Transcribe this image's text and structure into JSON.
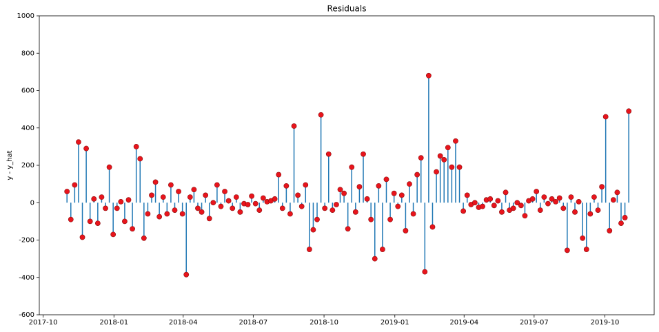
{
  "chart_data": {
    "type": "stem",
    "title": "Residuals",
    "y_label": "y - y_hat",
    "x": [
      "2017-11-01",
      "2017-11-06",
      "2017-11-11",
      "2017-11-16",
      "2017-11-21",
      "2017-11-26",
      "2017-12-01",
      "2017-12-06",
      "2017-12-11",
      "2017-12-16",
      "2017-12-21",
      "2017-12-26",
      "2017-12-31",
      "2018-01-05",
      "2018-01-10",
      "2018-01-15",
      "2018-01-20",
      "2018-01-25",
      "2018-01-30",
      "2018-02-04",
      "2018-02-09",
      "2018-02-14",
      "2018-02-19",
      "2018-02-24",
      "2018-03-01",
      "2018-03-06",
      "2018-03-11",
      "2018-03-16",
      "2018-03-21",
      "2018-03-26",
      "2018-03-31",
      "2018-04-05",
      "2018-04-10",
      "2018-04-15",
      "2018-04-20",
      "2018-04-25",
      "2018-04-30",
      "2018-05-05",
      "2018-05-10",
      "2018-05-15",
      "2018-05-20",
      "2018-05-25",
      "2018-05-30",
      "2018-06-04",
      "2018-06-09",
      "2018-06-14",
      "2018-06-19",
      "2018-06-24",
      "2018-06-29",
      "2018-07-04",
      "2018-07-09",
      "2018-07-14",
      "2018-07-19",
      "2018-07-24",
      "2018-07-29",
      "2018-08-03",
      "2018-08-08",
      "2018-08-13",
      "2018-08-18",
      "2018-08-23",
      "2018-08-28",
      "2018-09-02",
      "2018-09-07",
      "2018-09-12",
      "2018-09-17",
      "2018-09-22",
      "2018-09-27",
      "2018-10-02",
      "2018-10-07",
      "2018-10-12",
      "2018-10-17",
      "2018-10-22",
      "2018-10-27",
      "2018-11-01",
      "2018-11-06",
      "2018-11-11",
      "2018-11-16",
      "2018-11-21",
      "2018-11-26",
      "2018-12-01",
      "2018-12-06",
      "2018-12-11",
      "2018-12-16",
      "2018-12-21",
      "2018-12-26",
      "2018-12-31",
      "2019-01-05",
      "2019-01-10",
      "2019-01-15",
      "2019-01-20",
      "2019-01-25",
      "2019-01-30",
      "2019-02-04",
      "2019-02-09",
      "2019-02-14",
      "2019-02-19",
      "2019-02-24",
      "2019-03-01",
      "2019-03-06",
      "2019-03-11",
      "2019-03-16",
      "2019-03-21",
      "2019-03-26",
      "2019-03-31",
      "2019-04-05",
      "2019-04-10",
      "2019-04-15",
      "2019-04-20",
      "2019-04-25",
      "2019-04-30",
      "2019-05-05",
      "2019-05-10",
      "2019-05-15",
      "2019-05-20",
      "2019-05-25",
      "2019-05-30",
      "2019-06-04",
      "2019-06-09",
      "2019-06-14",
      "2019-06-19",
      "2019-06-24",
      "2019-06-29",
      "2019-07-04",
      "2019-07-09",
      "2019-07-14",
      "2019-07-19",
      "2019-07-24",
      "2019-07-29",
      "2019-08-03",
      "2019-08-08",
      "2019-08-13",
      "2019-08-18",
      "2019-08-23",
      "2019-08-28",
      "2019-09-02",
      "2019-09-07",
      "2019-09-12",
      "2019-09-17",
      "2019-09-22",
      "2019-09-27",
      "2019-10-02",
      "2019-10-07",
      "2019-10-12",
      "2019-10-17",
      "2019-10-22",
      "2019-10-27",
      "2019-11-01"
    ],
    "values": [
      60,
      -90,
      95,
      325,
      -185,
      290,
      -100,
      20,
      -110,
      30,
      -30,
      190,
      -170,
      -30,
      5,
      -100,
      15,
      -140,
      300,
      235,
      -190,
      -60,
      40,
      110,
      -75,
      30,
      -60,
      95,
      -40,
      60,
      -60,
      -385,
      30,
      70,
      -30,
      -50,
      40,
      -85,
      0,
      95,
      -20,
      60,
      10,
      -30,
      30,
      -50,
      -5,
      -10,
      35,
      -5,
      -40,
      25,
      5,
      10,
      20,
      150,
      -30,
      90,
      -60,
      410,
      40,
      -20,
      95,
      -250,
      -145,
      -90,
      470,
      -30,
      260,
      -40,
      -10,
      70,
      50,
      -140,
      190,
      -50,
      85,
      260,
      20,
      -90,
      -300,
      90,
      -250,
      125,
      -90,
      50,
      -20,
      40,
      -150,
      100,
      -60,
      150,
      240,
      -370,
      680,
      -130,
      165,
      250,
      230,
      295,
      190,
      330,
      190,
      -45,
      40,
      -10,
      0,
      -25,
      -20,
      15,
      20,
      -15,
      10,
      -50,
      55,
      -40,
      -30,
      0,
      -15,
      -70,
      10,
      20,
      60,
      -40,
      30,
      -5,
      20,
      5,
      25,
      -30,
      -255,
      30,
      -50,
      5,
      -190,
      -250,
      -60,
      30,
      -40,
      85,
      460,
      -150,
      15,
      55,
      -110,
      -80,
      490
    ],
    "stem_color": "#1f77b4",
    "marker_color": "#e8141c",
    "xlim": [
      "2017-09-26",
      "2019-12-04"
    ],
    "xticks": [
      "2017-10",
      "2018-01",
      "2018-04",
      "2018-07",
      "2018-10",
      "2019-01",
      "2019-04",
      "2019-07",
      "2019-10"
    ],
    "ylim": [
      -600,
      1000
    ],
    "yticks": [
      -600,
      -400,
      -200,
      0,
      200,
      400,
      600,
      800,
      1000
    ]
  }
}
